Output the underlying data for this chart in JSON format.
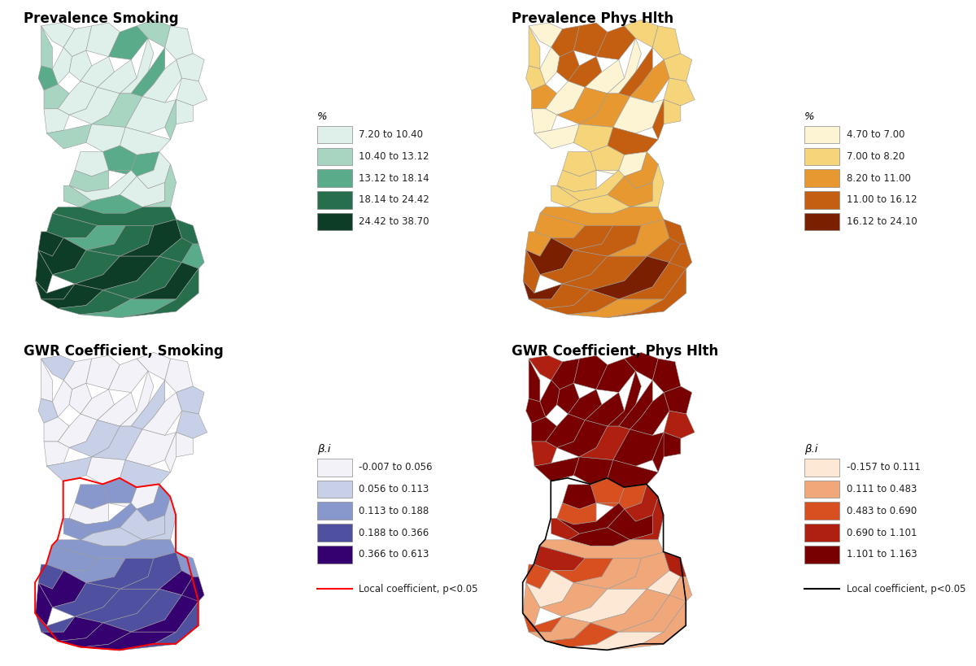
{
  "panels": [
    {
      "title": "Prevalence Smoking",
      "legend_title": "%",
      "legend_labels": [
        "7.20 to 10.40",
        "10.40 to 13.12",
        "13.12 to 18.14",
        "18.14 to 24.42",
        "24.42 to 38.70"
      ],
      "colors": [
        "#dff0ea",
        "#a8d5c2",
        "#5aab8a",
        "#276f4c",
        "#0d3d26"
      ],
      "has_red_outline": false,
      "outline_label": "",
      "outline_color": "#ff0000"
    },
    {
      "title": "Prevalence Phys Hlth",
      "legend_title": "%",
      "legend_labels": [
        "4.70 to 7.00",
        "7.00 to 8.20",
        "8.20 to 11.00",
        "11.00 to 16.12",
        "16.12 to 24.10"
      ],
      "colors": [
        "#fdf4d3",
        "#f5d47a",
        "#e89830",
        "#c45e10",
        "#7a2000"
      ],
      "has_red_outline": false,
      "outline_label": "",
      "outline_color": "#000000"
    },
    {
      "title": "GWR Coefficient, Smoking",
      "legend_title": "β.i",
      "legend_labels": [
        "-0.007 to 0.056",
        "0.056 to 0.113",
        "0.113 to 0.188",
        "0.188 to 0.366",
        "0.366 to 0.613"
      ],
      "colors": [
        "#f2f2f8",
        "#c8d0e8",
        "#8898cc",
        "#5050a0",
        "#350070"
      ],
      "has_red_outline": true,
      "outline_label": "Local coefficient, p<0.05",
      "outline_color": "#ff0000"
    },
    {
      "title": "GWR Coefficient, Phys Hlth",
      "legend_title": "β.i",
      "legend_labels": [
        "-0.157 to 0.111",
        "0.111 to 0.483",
        "0.483 to 0.690",
        "0.690 to 1.101",
        "1.101 to 1.163"
      ],
      "colors": [
        "#fce8d5",
        "#f0a87a",
        "#d85020",
        "#b02010",
        "#780000"
      ],
      "has_red_outline": false,
      "outline_label": "Local coefficient, p<0.05",
      "outline_color": "#000000"
    }
  ],
  "background_color": "#ffffff",
  "border_color": "#aaaaaa",
  "title_fontsize": 12,
  "legend_fontsize": 8.5
}
